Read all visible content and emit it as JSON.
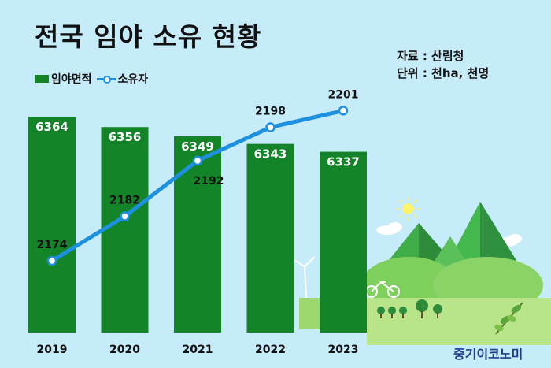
{
  "header": {
    "title": "전국 임야 소유 현황",
    "source_line": "자료 : 산림청",
    "unit_line": "단위 : 천ha, 천명"
  },
  "legend": {
    "bar_label": "임야면적",
    "line_label": "소유자"
  },
  "logo_text": "중기이코노미",
  "colors": {
    "background": "#c6ecfa",
    "bar": "#138528",
    "line": "#1e90e0"
  },
  "chart_data": {
    "type": "bar",
    "categories": [
      "2019",
      "2020",
      "2021",
      "2022",
      "2023"
    ],
    "series": [
      {
        "name": "임야면적",
        "type": "bar",
        "values": [
          6364,
          6356,
          6349,
          6343,
          6337
        ]
      },
      {
        "name": "소유자",
        "type": "line",
        "values": [
          2174,
          2182,
          2192,
          2198,
          2201
        ]
      }
    ],
    "grid": false,
    "legend_position": "top-left"
  }
}
